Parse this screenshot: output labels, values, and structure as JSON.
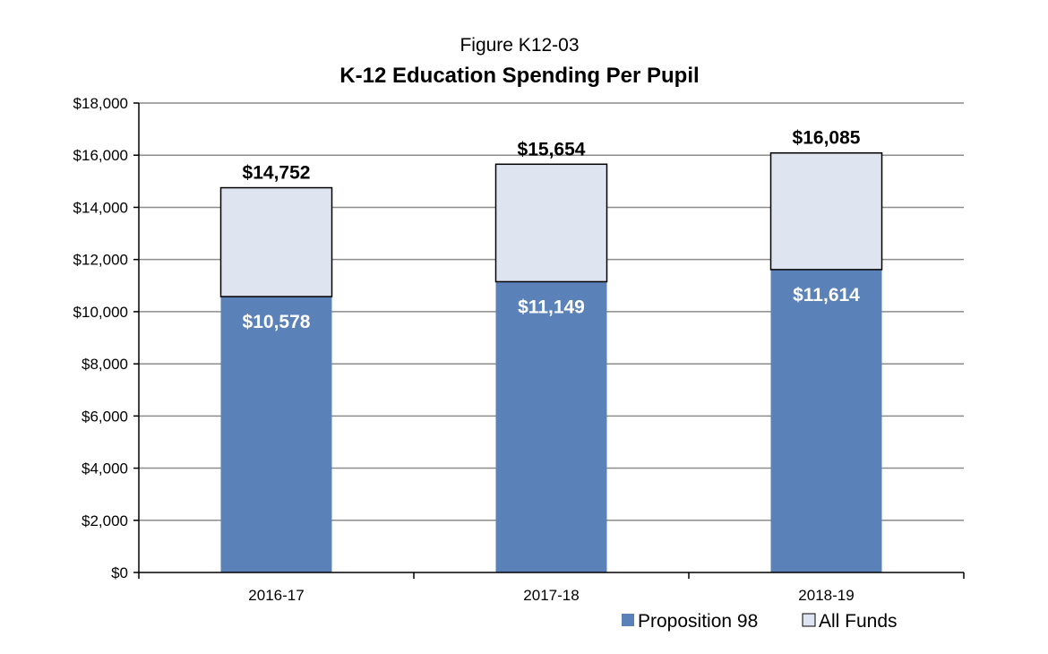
{
  "chart_data": {
    "type": "bar",
    "stacked": true,
    "title": "K-12 Education Spending Per Pupil",
    "subtitle": "Figure K12-03",
    "xlabel": "",
    "ylabel": "",
    "categories": [
      "2016-17",
      "2017-18",
      "2018-19"
    ],
    "series": [
      {
        "name": "Proposition 98",
        "values": [
          10578,
          11149,
          11614
        ],
        "labels": [
          "$10,578",
          "$11,149",
          "$11,614"
        ],
        "color": "#5b82b8"
      },
      {
        "name": "All Funds",
        "values": [
          4174,
          4505,
          4471
        ],
        "totals": [
          14752,
          15654,
          16085
        ],
        "labels": [
          "$14,752",
          "$15,654",
          "$16,085"
        ],
        "color": "#dfe5f0"
      }
    ],
    "ylim": [
      0,
      18000
    ],
    "yticks": [
      0,
      2000,
      4000,
      6000,
      8000,
      10000,
      12000,
      14000,
      16000,
      18000
    ],
    "ytick_labels": [
      "$0",
      "$2,000",
      "$4,000",
      "$6,000",
      "$8,000",
      "$10,000",
      "$12,000",
      "$14,000",
      "$16,000",
      "$18,000"
    ],
    "grid": true,
    "legend_position": "bottom-right"
  }
}
